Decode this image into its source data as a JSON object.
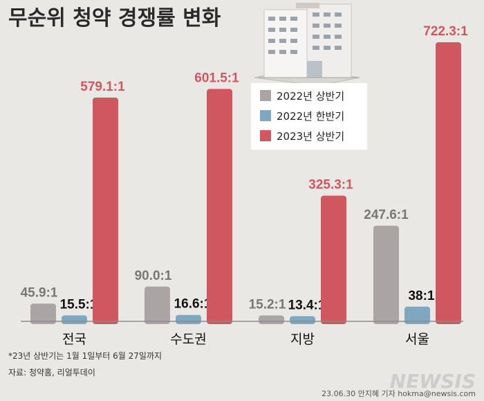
{
  "title": "무순위 청약 경쟁률 변화",
  "legend": [
    {
      "label": "2022년 상반기",
      "color": "#aaa4a4"
    },
    {
      "label": "2022년 한반기",
      "color": "#7fa7c0"
    },
    {
      "label": "2023년 상반기",
      "color": "#d0575f"
    }
  ],
  "chart_data": {
    "type": "bar",
    "categories": [
      "전국",
      "수도권",
      "지방",
      "서울"
    ],
    "series": [
      {
        "name": "2022년 상반기",
        "values": [
          45.9,
          90.0,
          15.2,
          247.6
        ],
        "labels": [
          "45.9:1",
          "90.0:1",
          "15.2:1",
          "247.6:1"
        ],
        "color": "#aaa4a4",
        "label_color": "#777777"
      },
      {
        "name": "2022년 한반기",
        "values": [
          15.5,
          16.6,
          13.4,
          38
        ],
        "labels": [
          "15.5:1",
          "16.6:1",
          "13.4:1",
          "38:1"
        ],
        "color": "#7fa7c0",
        "label_color": "#111111"
      },
      {
        "name": "2023년 상반기",
        "values": [
          579.1,
          601.5,
          325.3,
          722.3
        ],
        "labels": [
          "579.1:1",
          "601.5:1",
          "325.3:1",
          "722.3:1"
        ],
        "color": "#d0575f",
        "label_color": "#d0575f"
      }
    ],
    "ylim": [
      0,
      760
    ],
    "grid": false,
    "legend_position": "top-right"
  },
  "footnote": "*23년 상반기는 1월 1일부터 6월 27일까지",
  "source": "자료: 청약홈, 리얼투데이",
  "credit": "23.06.30 안지혜 기자 hokma@newsis.com",
  "logo_text": "NEWSIS"
}
